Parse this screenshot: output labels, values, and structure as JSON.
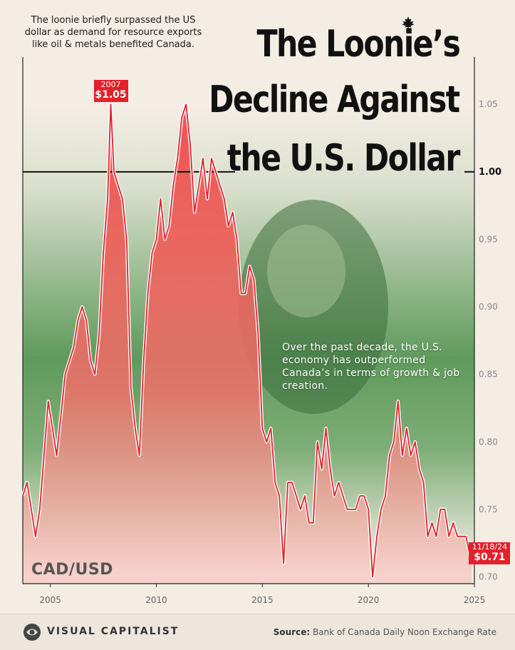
{
  "title_lines": [
    "The Loonie’s",
    "Decline Against",
    "the U.S. Dollar"
  ],
  "note_top": "The loonie briefly surpassed the US dollar as demand for resource exports like oil & metals benefited Canada.",
  "note_mid": "Over the past decade, the U.S. economy has outperformed Canada’s in terms of growth & job creation.",
  "series_label": "CAD/USD",
  "peak_callout": {
    "date": "2007",
    "value": "$1.05"
  },
  "last_callout": {
    "date": "11/18/24",
    "value": "$0.71"
  },
  "footer": {
    "brand": "VISUAL CAPITALIST",
    "source_label": "Source:",
    "source_text": " Bank of Canada Daily Noon Exchange Rate"
  },
  "colors": {
    "line": "#e4202a",
    "fill": "#f0605a",
    "callout": "#e4202a",
    "green": "#4f8a4d"
  },
  "chart_data": {
    "type": "area",
    "series_name": "CAD/USD",
    "xlim": [
      2003.7,
      2025
    ],
    "ylim": [
      0.695,
      1.085
    ],
    "x_ticks": [
      2005,
      2010,
      2015,
      2020,
      2025
    ],
    "y_ticks": [
      0.7,
      0.75,
      0.8,
      0.85,
      0.9,
      0.95,
      1.0,
      1.05
    ],
    "y_tick_labels": [
      "0.70",
      "0.75",
      "0.80",
      "0.85",
      "0.90",
      "0.95",
      "1.00",
      "1.05"
    ],
    "reference_line": 1.0,
    "points": [
      [
        2003.7,
        0.76
      ],
      [
        2003.9,
        0.77
      ],
      [
        2004.1,
        0.75
      ],
      [
        2004.3,
        0.73
      ],
      [
        2004.5,
        0.75
      ],
      [
        2004.7,
        0.79
      ],
      [
        2004.9,
        0.83
      ],
      [
        2005.1,
        0.81
      ],
      [
        2005.3,
        0.79
      ],
      [
        2005.5,
        0.82
      ],
      [
        2005.7,
        0.85
      ],
      [
        2005.9,
        0.86
      ],
      [
        2006.1,
        0.87
      ],
      [
        2006.3,
        0.89
      ],
      [
        2006.5,
        0.9
      ],
      [
        2006.7,
        0.89
      ],
      [
        2006.9,
        0.86
      ],
      [
        2007.1,
        0.85
      ],
      [
        2007.3,
        0.88
      ],
      [
        2007.5,
        0.94
      ],
      [
        2007.7,
        0.98
      ],
      [
        2007.85,
        1.05
      ],
      [
        2008.0,
        1.0
      ],
      [
        2008.2,
        0.99
      ],
      [
        2008.4,
        0.98
      ],
      [
        2008.6,
        0.95
      ],
      [
        2008.8,
        0.84
      ],
      [
        2009.0,
        0.81
      ],
      [
        2009.2,
        0.79
      ],
      [
        2009.4,
        0.86
      ],
      [
        2009.6,
        0.91
      ],
      [
        2009.8,
        0.94
      ],
      [
        2010.0,
        0.95
      ],
      [
        2010.2,
        0.98
      ],
      [
        2010.4,
        0.95
      ],
      [
        2010.6,
        0.96
      ],
      [
        2010.8,
        0.99
      ],
      [
        2011.0,
        1.01
      ],
      [
        2011.2,
        1.04
      ],
      [
        2011.4,
        1.05
      ],
      [
        2011.6,
        1.02
      ],
      [
        2011.8,
        0.97
      ],
      [
        2012.0,
        0.99
      ],
      [
        2012.2,
        1.01
      ],
      [
        2012.4,
        0.98
      ],
      [
        2012.6,
        1.01
      ],
      [
        2012.8,
        1.0
      ],
      [
        2013.0,
        0.99
      ],
      [
        2013.2,
        0.98
      ],
      [
        2013.4,
        0.96
      ],
      [
        2013.6,
        0.97
      ],
      [
        2013.8,
        0.95
      ],
      [
        2014.0,
        0.91
      ],
      [
        2014.2,
        0.91
      ],
      [
        2014.4,
        0.93
      ],
      [
        2014.6,
        0.92
      ],
      [
        2014.8,
        0.88
      ],
      [
        2015.0,
        0.81
      ],
      [
        2015.2,
        0.8
      ],
      [
        2015.4,
        0.81
      ],
      [
        2015.6,
        0.77
      ],
      [
        2015.8,
        0.76
      ],
      [
        2016.0,
        0.71
      ],
      [
        2016.2,
        0.77
      ],
      [
        2016.4,
        0.77
      ],
      [
        2016.6,
        0.76
      ],
      [
        2016.8,
        0.75
      ],
      [
        2017.0,
        0.76
      ],
      [
        2017.2,
        0.74
      ],
      [
        2017.4,
        0.74
      ],
      [
        2017.6,
        0.8
      ],
      [
        2017.8,
        0.78
      ],
      [
        2018.0,
        0.81
      ],
      [
        2018.2,
        0.78
      ],
      [
        2018.4,
        0.76
      ],
      [
        2018.6,
        0.77
      ],
      [
        2018.8,
        0.76
      ],
      [
        2019.0,
        0.75
      ],
      [
        2019.2,
        0.75
      ],
      [
        2019.4,
        0.75
      ],
      [
        2019.6,
        0.76
      ],
      [
        2019.8,
        0.76
      ],
      [
        2020.0,
        0.75
      ],
      [
        2020.2,
        0.7
      ],
      [
        2020.4,
        0.73
      ],
      [
        2020.6,
        0.75
      ],
      [
        2020.8,
        0.76
      ],
      [
        2021.0,
        0.79
      ],
      [
        2021.2,
        0.8
      ],
      [
        2021.4,
        0.83
      ],
      [
        2021.6,
        0.79
      ],
      [
        2021.8,
        0.81
      ],
      [
        2022.0,
        0.79
      ],
      [
        2022.2,
        0.8
      ],
      [
        2022.4,
        0.78
      ],
      [
        2022.6,
        0.77
      ],
      [
        2022.8,
        0.73
      ],
      [
        2023.0,
        0.74
      ],
      [
        2023.2,
        0.73
      ],
      [
        2023.4,
        0.75
      ],
      [
        2023.6,
        0.75
      ],
      [
        2023.8,
        0.73
      ],
      [
        2024.0,
        0.74
      ],
      [
        2024.2,
        0.73
      ],
      [
        2024.4,
        0.73
      ],
      [
        2024.6,
        0.73
      ],
      [
        2024.88,
        0.71
      ]
    ]
  }
}
